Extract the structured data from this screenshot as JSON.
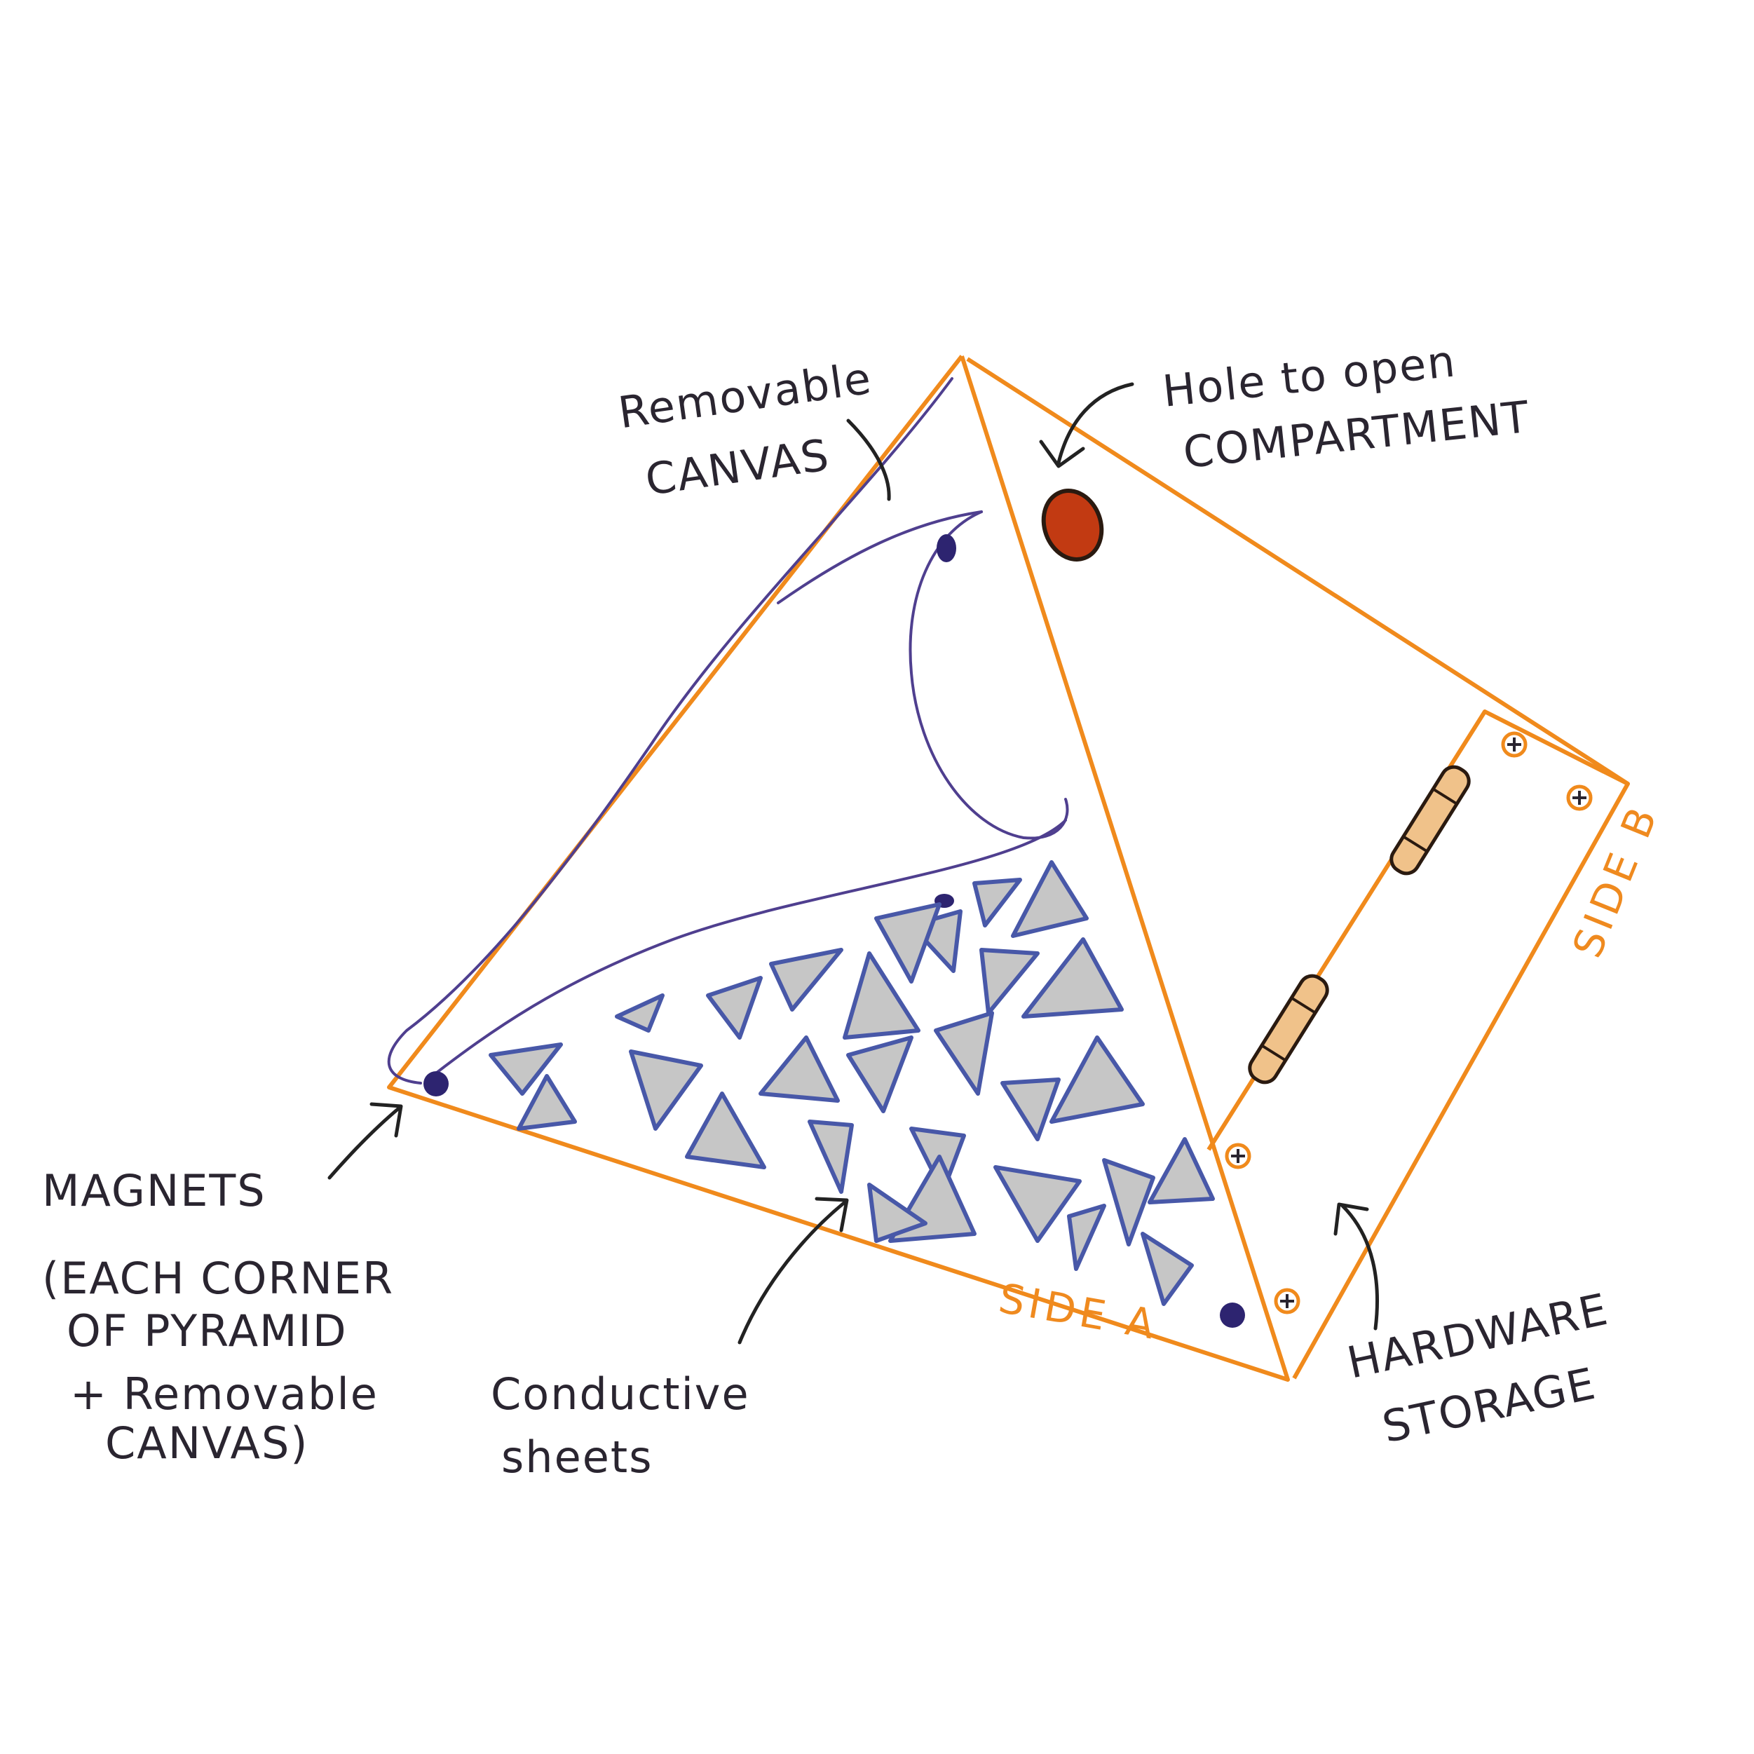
{
  "labels": {
    "removable_canvas": [
      "Removable",
      "CANVAS"
    ],
    "hole": [
      "Hole to open",
      "COMPARTMENT"
    ],
    "magnets": [
      "MAGNETS",
      "(EACH CORNER",
      "OF PYRAMID",
      "+ Removable",
      "CANVAS)"
    ],
    "conductive": [
      "Conductive",
      "sheets"
    ],
    "hardware": [
      "HARDWARE",
      "STORAGE"
    ],
    "side_a": "SIDE A",
    "side_b": "SIDE B"
  },
  "colors": {
    "orange_edges": "#f08a1c",
    "purple_canvas": "#4f3f8f",
    "blue_sheet_outline": "#4858a8",
    "gray_sheet_fill": "#c6c6c6",
    "magnet_dot": "#2d2470",
    "hole_fill": "#c23a12",
    "ink": "#2a2530"
  },
  "icons": [
    "magnet-dot",
    "screw-icon",
    "hinge-icon",
    "hole-icon",
    "pointer-arrow"
  ]
}
